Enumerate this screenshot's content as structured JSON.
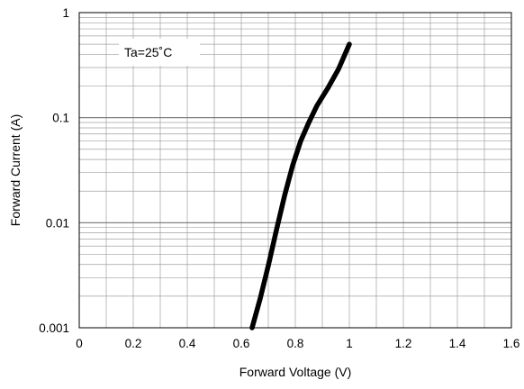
{
  "chart_data": {
    "type": "line",
    "title": "",
    "xlabel": "Forward Voltage (V)",
    "ylabel": "Forward Current (A)",
    "xlim": [
      0,
      1.6
    ],
    "ylim": [
      0.001,
      1
    ],
    "y_scale": "log",
    "grid": true,
    "legend": "none",
    "x_ticks": [
      0,
      0.2,
      0.4,
      0.6,
      0.8,
      1,
      1.2,
      1.4,
      1.6
    ],
    "x_tick_labels": [
      "0",
      "0.2",
      "0.4",
      "0.6",
      "0.8",
      "1",
      "1.2",
      "1.4",
      "1.6"
    ],
    "y_ticks": [
      0.001,
      0.01,
      0.1,
      1
    ],
    "y_tick_labels": [
      "0.001",
      "0.01",
      "0.1",
      "1"
    ],
    "annotation": "Ta=25˚C",
    "series": [
      {
        "color": "#000000",
        "x": [
          0.64,
          0.67,
          0.7,
          0.73,
          0.76,
          0.79,
          0.82,
          0.85,
          0.88,
          0.92,
          0.96,
          1.0
        ],
        "y": [
          0.001,
          0.0019,
          0.0039,
          0.0085,
          0.018,
          0.035,
          0.06,
          0.09,
          0.13,
          0.19,
          0.29,
          0.5
        ]
      }
    ]
  }
}
